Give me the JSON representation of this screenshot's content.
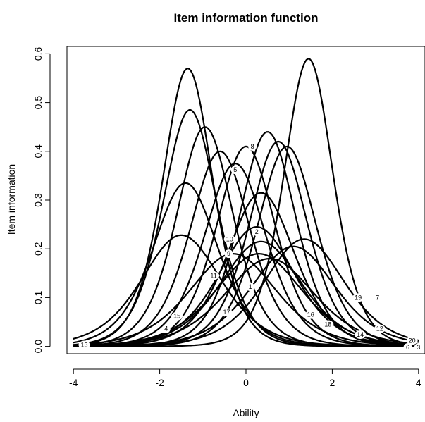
{
  "chart_data": {
    "type": "line",
    "title": "Item information function",
    "xlabel": "Ability",
    "ylabel": "Item information",
    "xlim": [
      -4.15,
      4.15
    ],
    "ylim": [
      -0.015,
      0.615
    ],
    "xticks": [
      -4,
      -2,
      0,
      2,
      4
    ],
    "yticks": [
      0.0,
      0.1,
      0.2,
      0.3,
      0.4,
      0.5,
      0.6
    ],
    "xtick_labels": [
      "-4",
      "-2",
      "0",
      "2",
      "4"
    ],
    "ytick_labels": [
      "0.0",
      "0.1",
      "0.2",
      "0.3",
      "0.4",
      "0.5",
      "0.6"
    ],
    "grid": false,
    "legend": "none",
    "x_range_curves": [
      -4,
      4
    ],
    "items": [
      {
        "label": "1",
        "peak_x": 0.3,
        "peak_y": 0.19,
        "discrimination": 0.87,
        "label_at": [
          0.1,
          0.122
        ]
      },
      {
        "label": "2",
        "peak_x": 0.25,
        "peak_y": 0.245,
        "discrimination": 0.99,
        "label_at": [
          0.25,
          0.235
        ]
      },
      {
        "label": "3",
        "peak_x": 1.35,
        "peak_y": 0.22,
        "discrimination": 0.94,
        "label_at": [
          4.0,
          -0.002
        ]
      },
      {
        "label": "4",
        "peak_x": -1.3,
        "peak_y": 0.485,
        "discrimination": 1.39,
        "label_at": [
          -1.85,
          0.036
        ]
      },
      {
        "label": "5",
        "peak_x": -0.25,
        "peak_y": 0.375,
        "discrimination": 1.22,
        "label_at": [
          -0.25,
          0.362
        ]
      },
      {
        "label": "6",
        "peak_x": 0.75,
        "peak_y": 0.42,
        "discrimination": 1.3,
        "label_at": [
          3.75,
          -0.002
        ]
      },
      {
        "label": "7",
        "peak_x": 1.45,
        "peak_y": 0.59,
        "discrimination": 1.54,
        "label_at": [
          3.05,
          0.1
        ]
      },
      {
        "label": "8",
        "peak_x": 0.0,
        "peak_y": 0.41,
        "discrimination": 1.28,
        "label_at": [
          0.15,
          0.41
        ]
      },
      {
        "label": "9",
        "peak_x": -0.95,
        "peak_y": 0.45,
        "discrimination": 1.34,
        "label_at": [
          -0.4,
          0.19
        ]
      },
      {
        "label": "10",
        "peak_x": -0.6,
        "peak_y": 0.4,
        "discrimination": 1.26,
        "label_at": [
          -0.38,
          0.22
        ]
      },
      {
        "label": "11",
        "peak_x": 0.35,
        "peak_y": 0.315,
        "discrimination": 1.12,
        "label_at": [
          -0.75,
          0.145
        ]
      },
      {
        "label": "12",
        "peak_x": 0.95,
        "peak_y": 0.41,
        "discrimination": 1.28,
        "label_at": [
          3.1,
          0.036
        ]
      },
      {
        "label": "13",
        "peak_x": -1.35,
        "peak_y": 0.57,
        "discrimination": 1.51,
        "label_at": [
          -3.75,
          0.003
        ]
      },
      {
        "label": "14",
        "peak_x": 1.1,
        "peak_y": 0.205,
        "discrimination": 0.91,
        "label_at": [
          2.65,
          0.024
        ]
      },
      {
        "label": "15",
        "peak_x": -1.5,
        "peak_y": 0.228,
        "discrimination": 0.95,
        "label_at": [
          -1.6,
          0.062
        ]
      },
      {
        "label": "16",
        "peak_x": -0.3,
        "peak_y": 0.19,
        "discrimination": 0.87,
        "label_at": [
          1.5,
          0.065
        ]
      },
      {
        "label": "17",
        "peak_x": 0.55,
        "peak_y": 0.18,
        "discrimination": 0.85,
        "label_at": [
          -0.45,
          0.07
        ]
      },
      {
        "label": "18",
        "peak_x": -1.4,
        "peak_y": 0.335,
        "discrimination": 1.16,
        "label_at": [
          1.9,
          0.045
        ]
      },
      {
        "label": "19",
        "peak_x": 0.5,
        "peak_y": 0.44,
        "discrimination": 1.33,
        "label_at": [
          2.6,
          0.1
        ]
      },
      {
        "label": "20",
        "peak_x": 0.35,
        "peak_y": 0.215,
        "discrimination": 0.93,
        "label_at": [
          3.85,
          0.012
        ]
      }
    ]
  }
}
